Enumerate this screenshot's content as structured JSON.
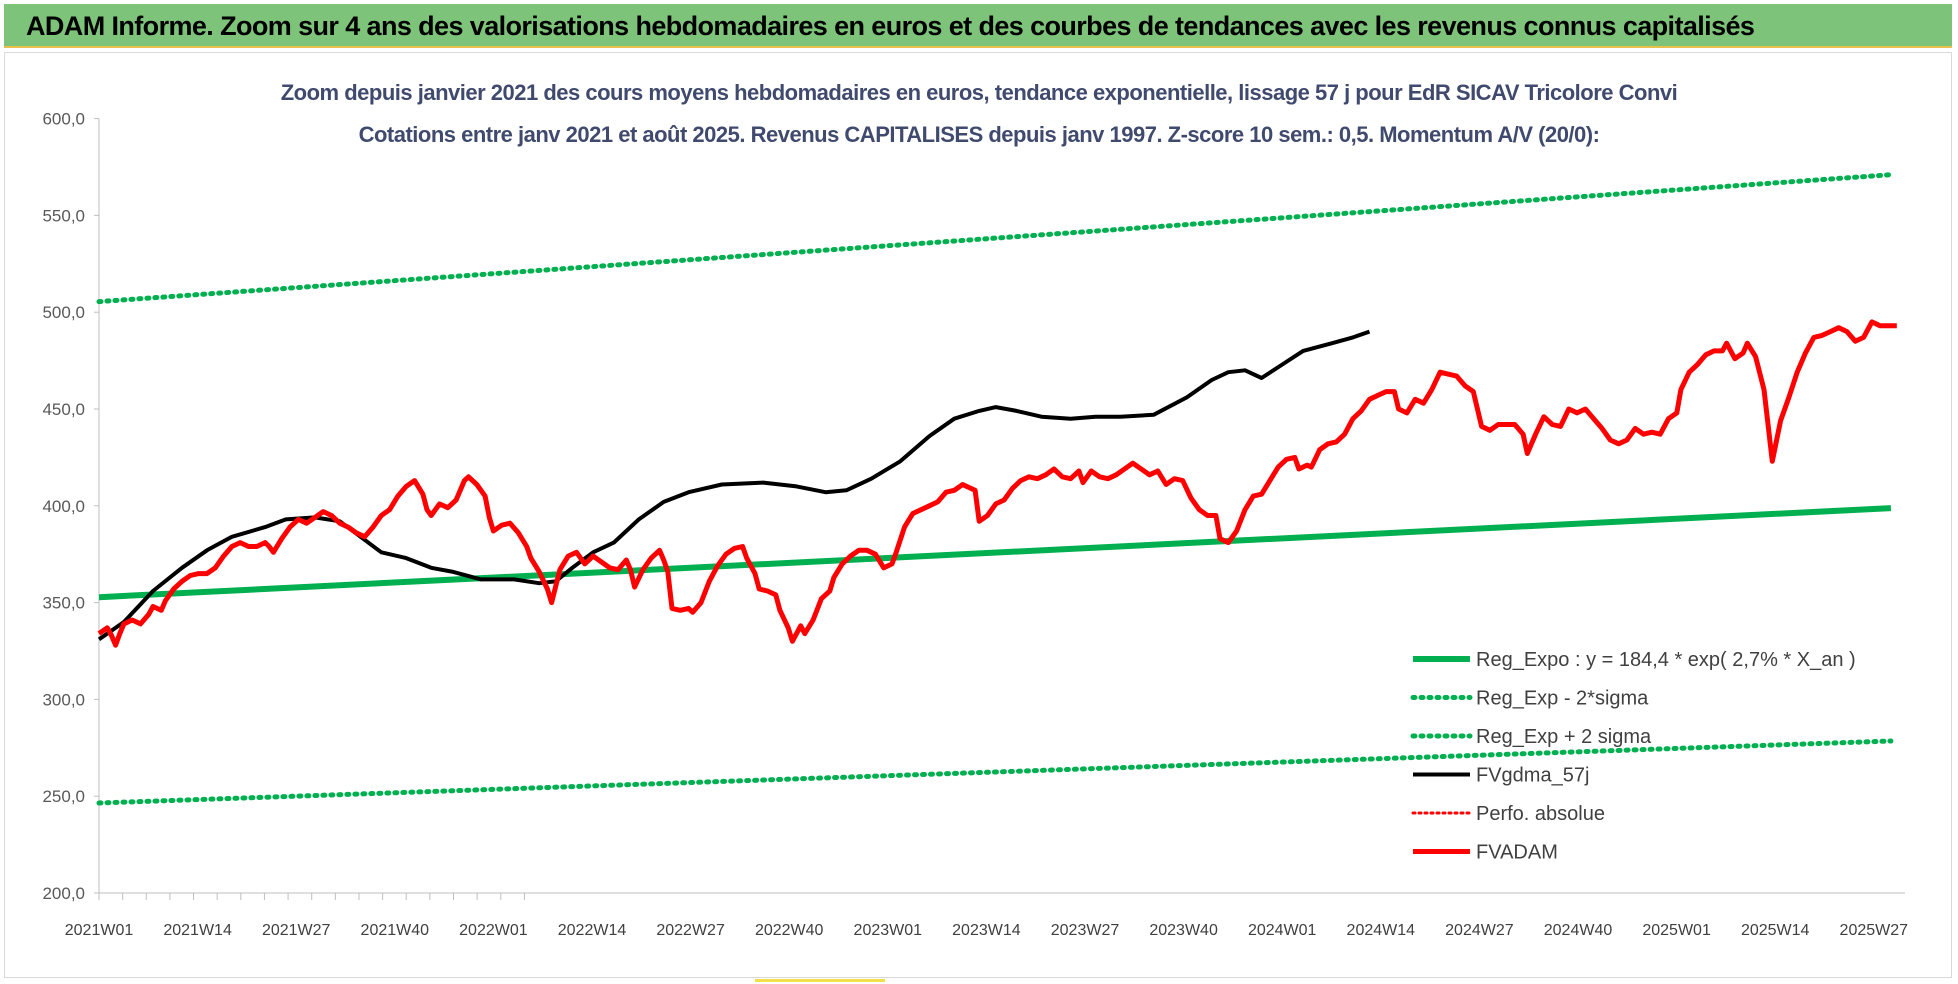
{
  "banner": {
    "title": "ADAM Informe. Zoom sur 4 ans des valorisations hebdomadaires en euros et des courbes de tendances avec les revenus connus capitalisés"
  },
  "colors": {
    "banner_bg": "#7dc47a",
    "reg_expo": "#00b050",
    "fvadam": "#ff0000",
    "fvgdma": "#000000",
    "title_text": "#404a6e"
  },
  "chart_data": {
    "type": "line",
    "title": "Zoom depuis janvier 2021 des cours moyens hebdomadaires en euros, tendance exponentielle, lissage 57 j pour EdR SICAV Tricolore Convi",
    "subtitle": "Cotations entre janv 2021 et août 2025. Revenus CAPITALISES depuis janv 1997. Z-score 10 sem.: 0,5. Momentum A/V (20/0):",
    "xlabel": "",
    "ylabel": "",
    "ylim": [
      200,
      600
    ],
    "yticks": [
      "200,0",
      "250,0",
      "300,0",
      "350,0",
      "400,0",
      "450,0",
      "500,0",
      "550,0",
      "600,0"
    ],
    "xticks": [
      "2021W01",
      "2021W14",
      "2021W27",
      "2021W40",
      "2022W01",
      "2022W14",
      "2022W27",
      "2022W40",
      "2023W01",
      "2023W14",
      "2023W27",
      "2023W40",
      "2024W01",
      "2024W14",
      "2024W27",
      "2024W40",
      "2025W01",
      "2025W14",
      "2025W27"
    ],
    "grid": false,
    "legend_position": "bottom-right",
    "series": [
      {
        "name": "Reg_Expo : y = 184,4 * exp( 2,7% *  X_an )",
        "style": "solid",
        "color": "#00b050",
        "points": [
          [
            0,
            352.8
          ],
          [
            235,
            398.8
          ]
        ]
      },
      {
        "name": "Reg_Exp - 2*sigma",
        "style": "dotted",
        "color": "#00b050",
        "points": [
          [
            0,
            246.5
          ],
          [
            235,
            278.5
          ]
        ]
      },
      {
        "name": "Reg_Exp + 2 sigma",
        "style": "dotted",
        "color": "#00b050",
        "points": [
          [
            0,
            505.5
          ],
          [
            235,
            571
          ]
        ]
      },
      {
        "name": "FVgdma_57j",
        "style": "solid",
        "color": "#000000",
        "points": [
          [
            0,
            331
          ],
          [
            6,
            340
          ],
          [
            13,
            356
          ],
          [
            20,
            368
          ],
          [
            26,
            377
          ],
          [
            32,
            384
          ],
          [
            40,
            389
          ],
          [
            45,
            393
          ],
          [
            52,
            394
          ],
          [
            58,
            392
          ],
          [
            63,
            384
          ],
          [
            68,
            376
          ],
          [
            74,
            373
          ],
          [
            80,
            368
          ],
          [
            85,
            366
          ],
          [
            92,
            362
          ],
          [
            100,
            362
          ],
          [
            106,
            360
          ],
          [
            110,
            361
          ],
          [
            114,
            368
          ],
          [
            119,
            376
          ],
          [
            124,
            381
          ],
          [
            130,
            393
          ],
          [
            136,
            402
          ],
          [
            142,
            407
          ],
          [
            150,
            411
          ],
          [
            160,
            412
          ],
          [
            168,
            410
          ],
          [
            175,
            407
          ],
          [
            180,
            408
          ],
          [
            186,
            414
          ],
          [
            193,
            423
          ],
          [
            200,
            436
          ],
          [
            206,
            445
          ],
          [
            212,
            449
          ],
          [
            216,
            451
          ],
          [
            221,
            449
          ],
          [
            227,
            446
          ],
          [
            234,
            445
          ],
          [
            240,
            446
          ],
          [
            246,
            446
          ],
          [
            254,
            447
          ],
          [
            262,
            456
          ],
          [
            268,
            465
          ],
          [
            272,
            469
          ],
          [
            276,
            470
          ],
          [
            280,
            466
          ],
          [
            285,
            473
          ],
          [
            290,
            480
          ],
          [
            297,
            484
          ],
          [
            302,
            487
          ],
          [
            306,
            490
          ]
        ]
      },
      {
        "name": "FVADAM",
        "style": "solid",
        "color": "#ff0000",
        "points": [
          [
            0,
            334
          ],
          [
            2,
            337
          ],
          [
            3,
            333
          ],
          [
            4,
            328
          ],
          [
            5,
            334
          ],
          [
            6,
            339
          ],
          [
            8,
            341
          ],
          [
            10,
            339
          ],
          [
            12,
            344
          ],
          [
            13,
            348
          ],
          [
            15,
            346
          ],
          [
            16,
            351
          ],
          [
            18,
            357
          ],
          [
            20,
            361
          ],
          [
            22,
            364
          ],
          [
            24,
            365
          ],
          [
            26,
            365
          ],
          [
            28,
            368
          ],
          [
            30,
            374
          ],
          [
            32,
            379
          ],
          [
            34,
            381
          ],
          [
            36,
            379
          ],
          [
            38,
            379
          ],
          [
            40,
            381
          ],
          [
            41,
            379
          ],
          [
            42,
            376
          ],
          [
            44,
            383
          ],
          [
            46,
            389
          ],
          [
            48,
            393
          ],
          [
            50,
            391
          ],
          [
            52,
            394
          ],
          [
            54,
            397
          ],
          [
            56,
            395
          ],
          [
            58,
            391
          ],
          [
            60,
            389
          ],
          [
            62,
            386
          ],
          [
            64,
            384
          ],
          [
            66,
            389
          ],
          [
            68,
            395
          ],
          [
            70,
            398
          ],
          [
            72,
            405
          ],
          [
            74,
            410
          ],
          [
            76,
            413
          ],
          [
            78,
            406
          ],
          [
            79,
            398
          ],
          [
            80,
            395
          ],
          [
            82,
            401
          ],
          [
            84,
            399
          ],
          [
            86,
            403
          ],
          [
            88,
            413
          ],
          [
            89,
            415
          ],
          [
            91,
            411
          ],
          [
            93,
            405
          ],
          [
            94,
            394
          ],
          [
            95,
            387
          ],
          [
            97,
            390
          ],
          [
            99,
            391
          ],
          [
            101,
            386
          ],
          [
            103,
            379
          ],
          [
            104,
            373
          ],
          [
            106,
            366
          ],
          [
            108,
            357
          ],
          [
            109,
            350
          ],
          [
            111,
            367
          ],
          [
            113,
            374
          ],
          [
            115,
            376
          ],
          [
            117,
            370
          ],
          [
            119,
            374
          ],
          [
            121,
            371
          ],
          [
            123,
            368
          ],
          [
            125,
            367
          ],
          [
            127,
            372
          ],
          [
            128,
            367
          ],
          [
            129,
            358
          ],
          [
            131,
            367
          ],
          [
            133,
            373
          ],
          [
            135,
            377
          ],
          [
            136,
            372
          ],
          [
            137,
            366
          ],
          [
            138,
            347
          ],
          [
            140,
            346
          ],
          [
            142,
            347
          ],
          [
            143,
            345
          ],
          [
            145,
            350
          ],
          [
            147,
            361
          ],
          [
            149,
            369
          ],
          [
            151,
            375
          ],
          [
            153,
            378
          ],
          [
            155,
            379
          ],
          [
            156,
            373
          ],
          [
            158,
            365
          ],
          [
            159,
            357
          ],
          [
            161,
            356
          ],
          [
            163,
            354
          ],
          [
            164,
            346
          ],
          [
            166,
            337
          ],
          [
            167,
            330
          ],
          [
            169,
            338
          ],
          [
            170,
            334
          ],
          [
            172,
            341
          ],
          [
            174,
            352
          ],
          [
            176,
            356
          ],
          [
            177,
            363
          ],
          [
            179,
            370
          ],
          [
            181,
            374
          ],
          [
            183,
            377
          ],
          [
            185,
            377
          ],
          [
            187,
            375
          ],
          [
            189,
            368
          ],
          [
            191,
            370
          ],
          [
            192,
            376
          ],
          [
            194,
            389
          ],
          [
            196,
            396
          ],
          [
            198,
            398
          ],
          [
            200,
            400
          ],
          [
            202,
            402
          ],
          [
            204,
            407
          ],
          [
            206,
            408
          ],
          [
            208,
            411
          ],
          [
            210,
            409
          ],
          [
            211,
            408
          ],
          [
            212,
            392
          ],
          [
            214,
            395
          ],
          [
            216,
            401
          ],
          [
            218,
            403
          ],
          [
            220,
            409
          ],
          [
            222,
            413
          ],
          [
            224,
            415
          ],
          [
            226,
            414
          ],
          [
            228,
            416
          ],
          [
            230,
            419
          ],
          [
            232,
            415
          ],
          [
            234,
            414
          ],
          [
            236,
            418
          ],
          [
            237,
            412
          ],
          [
            239,
            418
          ],
          [
            241,
            415
          ],
          [
            243,
            414
          ],
          [
            245,
            416
          ],
          [
            247,
            419
          ],
          [
            249,
            422
          ],
          [
            251,
            419
          ],
          [
            253,
            416
          ],
          [
            255,
            418
          ],
          [
            257,
            411
          ],
          [
            259,
            414
          ],
          [
            261,
            413
          ],
          [
            263,
            404
          ],
          [
            265,
            398
          ],
          [
            267,
            395
          ],
          [
            269,
            395
          ],
          [
            270,
            383
          ],
          [
            272,
            381
          ],
          [
            274,
            387
          ],
          [
            276,
            398
          ],
          [
            278,
            405
          ],
          [
            280,
            406
          ],
          [
            282,
            413
          ],
          [
            284,
            420
          ],
          [
            286,
            424
          ],
          [
            288,
            425
          ],
          [
            289,
            419
          ],
          [
            291,
            421
          ],
          [
            292,
            420
          ],
          [
            294,
            429
          ],
          [
            296,
            432
          ],
          [
            298,
            433
          ],
          [
            300,
            437
          ],
          [
            302,
            445
          ],
          [
            304,
            449
          ],
          [
            306,
            455
          ],
          [
            308,
            457
          ],
          [
            310,
            459
          ],
          [
            312,
            459
          ],
          [
            313,
            450
          ],
          [
            315,
            448
          ],
          [
            317,
            455
          ],
          [
            319,
            453
          ],
          [
            321,
            460
          ],
          [
            323,
            469
          ],
          [
            325,
            468
          ],
          [
            327,
            467
          ],
          [
            329,
            462
          ],
          [
            331,
            459
          ],
          [
            333,
            441
          ],
          [
            335,
            439
          ],
          [
            337,
            442
          ],
          [
            339,
            442
          ],
          [
            341,
            442
          ],
          [
            343,
            437
          ],
          [
            344,
            427
          ],
          [
            346,
            437
          ],
          [
            348,
            446
          ],
          [
            350,
            442
          ],
          [
            352,
            441
          ],
          [
            354,
            450
          ],
          [
            356,
            448
          ],
          [
            358,
            450
          ],
          [
            360,
            445
          ],
          [
            362,
            440
          ],
          [
            364,
            434
          ],
          [
            366,
            432
          ],
          [
            368,
            434
          ],
          [
            370,
            440
          ],
          [
            372,
            437
          ],
          [
            374,
            438
          ],
          [
            376,
            437
          ],
          [
            378,
            445
          ],
          [
            380,
            448
          ],
          [
            381,
            460
          ],
          [
            383,
            469
          ],
          [
            385,
            473
          ],
          [
            387,
            478
          ],
          [
            389,
            480
          ],
          [
            391,
            480
          ],
          [
            392,
            484
          ],
          [
            394,
            476
          ],
          [
            396,
            479
          ],
          [
            397,
            484
          ],
          [
            399,
            477
          ],
          [
            401,
            460
          ],
          [
            403,
            423
          ],
          [
            405,
            444
          ],
          [
            407,
            456
          ],
          [
            409,
            469
          ],
          [
            411,
            479
          ],
          [
            413,
            487
          ],
          [
            415,
            488
          ],
          [
            417,
            490
          ],
          [
            419,
            492
          ],
          [
            421,
            490
          ],
          [
            423,
            485
          ],
          [
            425,
            487
          ],
          [
            427,
            495
          ],
          [
            429,
            493
          ],
          [
            431,
            493
          ],
          [
            433,
            493
          ]
        ]
      }
    ]
  }
}
